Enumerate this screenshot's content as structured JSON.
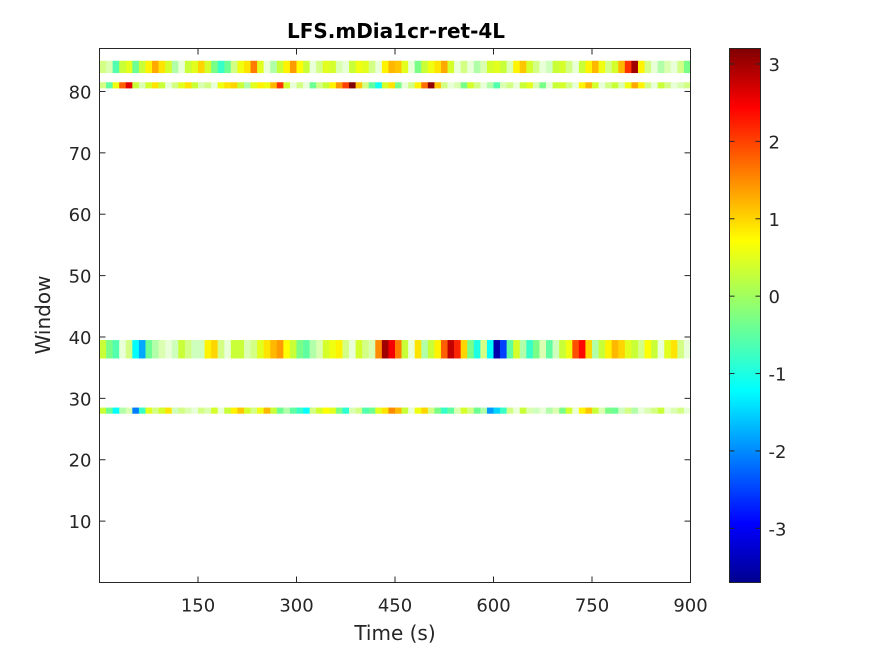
{
  "chart_data": {
    "type": "heatmap",
    "title": "LFS.mDia1cr-ret-4L",
    "xlabel": "Time (s)",
    "ylabel": "Window",
    "xlim": [
      0,
      900
    ],
    "ylim": [
      0,
      87
    ],
    "xticks": [
      150,
      300,
      450,
      600,
      750,
      900
    ],
    "xtick_labels": [
      "150",
      "300",
      "450",
      "600",
      "750",
      "900"
    ],
    "yticks": [
      10,
      20,
      30,
      40,
      50,
      60,
      70,
      80
    ],
    "ytick_labels": [
      "10",
      "20",
      "30",
      "40",
      "50",
      "60",
      "70",
      "80"
    ],
    "colorbar": {
      "colormap": "jet",
      "clim": [
        -3.7,
        3.2
      ],
      "ticks": [
        -3,
        -2,
        -1,
        0,
        1,
        2,
        3
      ],
      "tick_labels": [
        "-3",
        "-2",
        "-1",
        "0",
        "1",
        "2",
        "3"
      ]
    },
    "time_step": 10,
    "rows": [
      {
        "window": 28,
        "height": 1,
        "values": [
          0.3,
          -0.4,
          -1.2,
          -0.2,
          0.1,
          -2.1,
          -0.8,
          0.5,
          0.2,
          0.4,
          0.9,
          -0.1,
          0.2,
          0.1,
          0.0,
          0.2,
          0.1,
          0.4,
          0.0,
          0.3,
          0.8,
          1.1,
          0.4,
          0.2,
          0.6,
          1.2,
          0.3,
          -0.4,
          -0.2,
          -0.5,
          -0.8,
          -1.2,
          0.2,
          0.4,
          0.7,
          0.5,
          -0.3,
          -0.9,
          0.1,
          0.2,
          -0.6,
          -0.4,
          0.5,
          0.9,
          1.5,
          1.2,
          0.3,
          0.0,
          0.6,
          1.0,
          0.2,
          -0.3,
          -0.8,
          -0.5,
          0.1,
          0.4,
          0.2,
          -0.4,
          -0.2,
          -1.9,
          -1.5,
          -0.8,
          0.2,
          0.0,
          0.3,
          0.1,
          -0.1,
          0.0,
          -0.2,
          0.1,
          -0.3,
          0.4,
          0.0,
          0.8,
          1.1,
          0.3,
          0.1,
          -0.3,
          -0.4,
          -0.1,
          0.2,
          -0.2,
          0.0,
          0.1,
          0.2,
          0.3,
          0.0,
          0.1,
          0.2,
          0.0
        ]
      },
      {
        "window": 38,
        "height": 3,
        "values": [
          0.3,
          -0.3,
          -0.6,
          0.0,
          0.2,
          -1.2,
          -1.8,
          -0.4,
          -0.2,
          0.1,
          0.0,
          -0.1,
          0.3,
          0.2,
          -0.1,
          -0.1,
          0.8,
          1.0,
          0.2,
          0.0,
          0.3,
          0.3,
          0.1,
          0.2,
          0.5,
          0.9,
          1.2,
          1.4,
          0.7,
          0.3,
          -0.3,
          -0.5,
          -0.2,
          0.1,
          0.4,
          0.6,
          0.8,
          0.2,
          0.0,
          0.4,
          0.2,
          0.1,
          1.5,
          3.0,
          2.5,
          1.6,
          0.3,
          0.0,
          0.9,
          -0.2,
          0.3,
          0.8,
          1.8,
          2.8,
          2.2,
          1.0,
          -0.3,
          -1.0,
          0.2,
          -1.2,
          -3.5,
          -2.5,
          -0.5,
          0.4,
          -0.2,
          -0.8,
          -0.3,
          0.1,
          -0.5,
          -0.1,
          0.3,
          0.6,
          1.9,
          2.4,
          1.0,
          -0.2,
          0.3,
          0.8,
          1.2,
          1.0,
          0.5,
          0.3,
          0.2,
          0.7,
          0.3,
          0.0,
          0.5,
          0.9,
          0.2,
          0.0
        ]
      },
      {
        "window": 81,
        "height": 1,
        "values": [
          0.2,
          -0.5,
          0.6,
          1.8,
          2.6,
          0.3,
          0.1,
          0.4,
          0.9,
          0.3,
          0.0,
          0.2,
          0.5,
          0.9,
          0.3,
          0.1,
          0.2,
          0.0,
          0.6,
          0.9,
          1.0,
          0.3,
          -0.2,
          0.5,
          0.8,
          0.6,
          1.2,
          2.1,
          0.4,
          0.0,
          0.2,
          0.0,
          -0.4,
          0.2,
          0.3,
          0.8,
          1.4,
          2.0,
          3.2,
          1.1,
          0.2,
          -0.5,
          -1.1,
          0.4,
          0.9,
          -0.3,
          0.0,
          0.2,
          0.8,
          1.7,
          3.1,
          1.1,
          0.2,
          0.0,
          0.1,
          -0.3,
          0.4,
          0.2,
          0.0,
          -0.2,
          -0.6,
          0.1,
          0.2,
          0.0,
          0.3,
          0.5,
          0.1,
          -0.3,
          0.0,
          0.3,
          0.4,
          0.2,
          0.0,
          0.8,
          1.2,
          0.4,
          0.0,
          0.2,
          0.3,
          0.1,
          0.6,
          1.3,
          0.8,
          0.2,
          0.0,
          0.3,
          0.2,
          0.0,
          0.1,
          0.2
        ]
      },
      {
        "window": 84,
        "height": 2,
        "values": [
          0.2,
          0.1,
          -0.6,
          0.3,
          0.5,
          -0.4,
          0.3,
          0.8,
          1.3,
          0.9,
          0.4,
          -0.2,
          0.0,
          0.3,
          0.5,
          1.0,
          0.4,
          -0.3,
          -0.8,
          -0.4,
          0.2,
          0.6,
          0.9,
          1.6,
          0.5,
          0.0,
          -0.2,
          0.3,
          0.8,
          1.4,
          0.7,
          0.3,
          0.0,
          0.2,
          0.5,
          0.4,
          0.1,
          0.0,
          0.3,
          0.6,
          0.5,
          0.2,
          0.0,
          0.8,
          1.2,
          1.1,
          0.5,
          0.0,
          -0.3,
          0.3,
          0.6,
          0.9,
          1.3,
          0.4,
          0.0,
          0.2,
          0.0,
          -0.2,
          0.1,
          0.4,
          0.5,
          0.3,
          0.1,
          0.8,
          1.1,
          0.4,
          0.2,
          0.0,
          -0.1,
          0.3,
          0.4,
          0.2,
          0.0,
          0.3,
          0.8,
          1.2,
          0.6,
          0.2,
          0.4,
          1.2,
          2.1,
          3.0,
          0.8,
          0.2,
          0.0,
          -0.2,
          0.1,
          0.0,
          0.2,
          -0.3
        ]
      }
    ]
  }
}
